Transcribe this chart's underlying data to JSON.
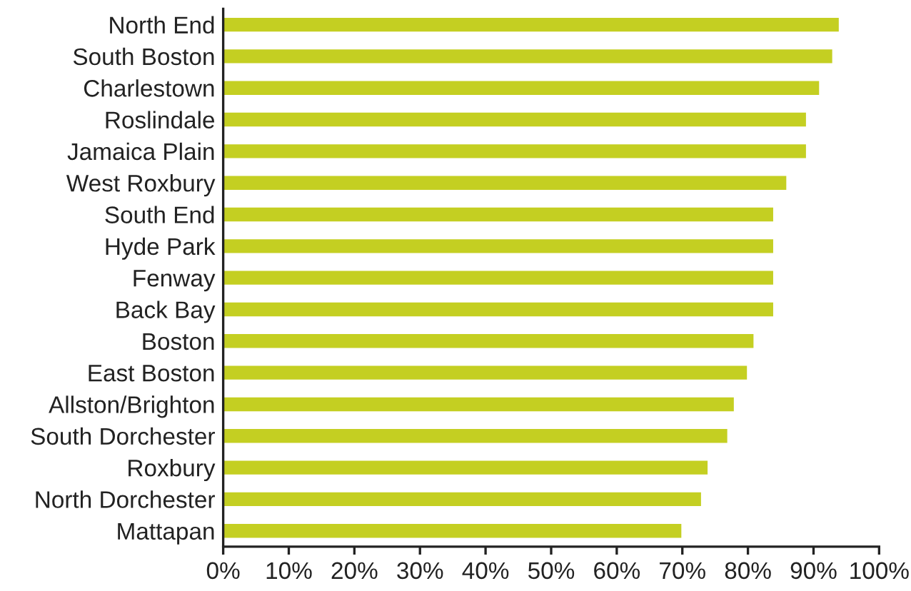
{
  "chart_data": {
    "type": "bar",
    "orientation": "horizontal",
    "categories": [
      "North End",
      "South Boston",
      "Charlestown",
      "Roslindale",
      "Jamaica Plain",
      "West Roxbury",
      "South End",
      "Hyde Park",
      "Fenway",
      "Back Bay",
      "Boston",
      "East Boston",
      "Allston/Brighton",
      "South Dorchester",
      "Roxbury",
      "North Dorchester",
      "Mattapan"
    ],
    "values": [
      94,
      93,
      91,
      89,
      89,
      86,
      84,
      84,
      84,
      84,
      81,
      80,
      78,
      77,
      74,
      73,
      70
    ],
    "color": "#c4cf22",
    "xlim": [
      0,
      100
    ],
    "xticks": [
      {
        "value": 0,
        "label": "0%"
      },
      {
        "value": 10,
        "label": "10%"
      },
      {
        "value": 20,
        "label": "20%"
      },
      {
        "value": 30,
        "label": "30%"
      },
      {
        "value": 40,
        "label": "40%"
      },
      {
        "value": 50,
        "label": "50%"
      },
      {
        "value": 60,
        "label": "60%"
      },
      {
        "value": 70,
        "label": "70%"
      },
      {
        "value": 80,
        "label": "80%"
      },
      {
        "value": 90,
        "label": "90%"
      },
      {
        "value": 100,
        "label": "100%"
      }
    ],
    "grid": false,
    "legend": false
  }
}
